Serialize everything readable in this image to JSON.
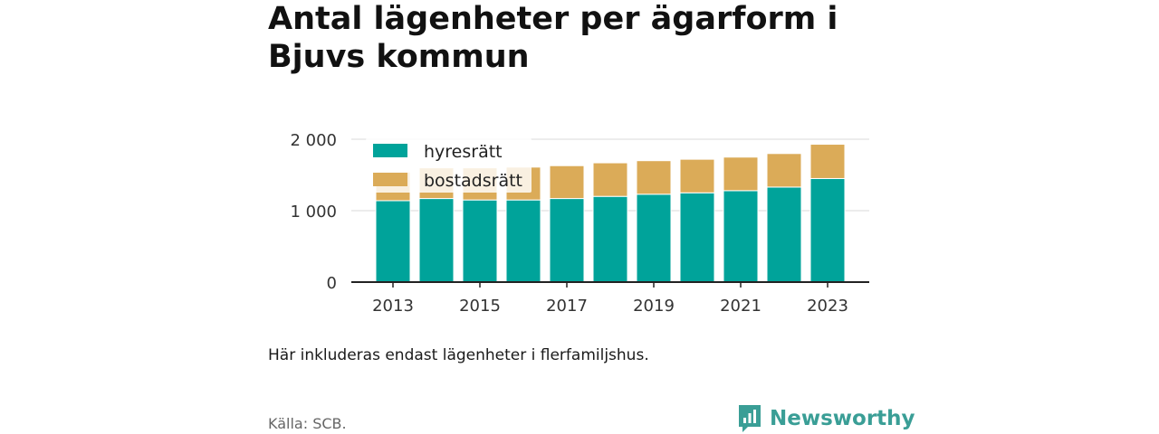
{
  "title": "Antal lägenheter per ägarform i Bjuvs kommun",
  "note": "Här inkluderas endast lägenheter i flerfamiljshus.",
  "source": "Källa: SCB.",
  "brand": "Newsworthy",
  "colors": {
    "hyresratt": "#00a39a",
    "bostadsratt": "#dbab58",
    "brand": "#3a9e96",
    "grid": "#d9d9d9",
    "axis": "#222222",
    "text": "#333333"
  },
  "chart_data": {
    "type": "bar",
    "stacked": true,
    "categories": [
      "2013",
      "2014",
      "2015",
      "2016",
      "2017",
      "2018",
      "2019",
      "2020",
      "2021",
      "2022",
      "2023"
    ],
    "series": [
      {
        "name": "hyresrätt",
        "values": [
          1140,
          1170,
          1150,
          1150,
          1170,
          1200,
          1230,
          1250,
          1280,
          1330,
          1450
        ]
      },
      {
        "name": "bostadsrätt",
        "values": [
          400,
          430,
          450,
          460,
          460,
          470,
          470,
          470,
          470,
          470,
          480
        ]
      }
    ],
    "x_tick_labels": [
      "2013",
      "2015",
      "2017",
      "2019",
      "2021",
      "2023"
    ],
    "y_ticks": [
      0,
      1000,
      2000
    ],
    "y_tick_labels": [
      "0",
      "1 000",
      "2 000"
    ],
    "ylim": [
      0,
      2000
    ],
    "grid": true,
    "legend_position": "top-left"
  }
}
